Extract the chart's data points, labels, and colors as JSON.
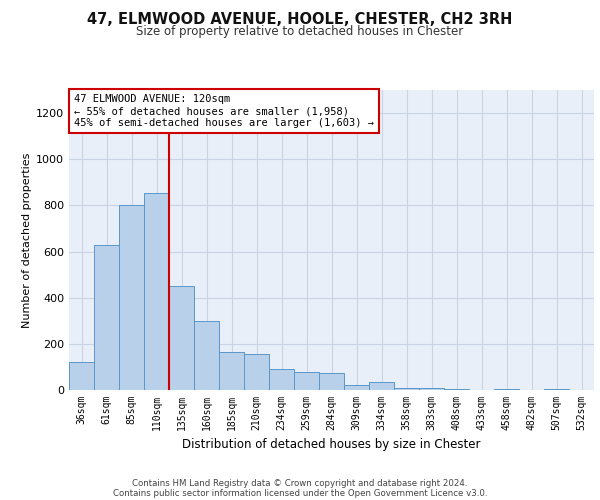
{
  "title": "47, ELMWOOD AVENUE, HOOLE, CHESTER, CH2 3RH",
  "subtitle": "Size of property relative to detached houses in Chester",
  "xlabel": "Distribution of detached houses by size in Chester",
  "ylabel": "Number of detached properties",
  "categories": [
    "36sqm",
    "61sqm",
    "85sqm",
    "110sqm",
    "135sqm",
    "160sqm",
    "185sqm",
    "210sqm",
    "234sqm",
    "259sqm",
    "284sqm",
    "309sqm",
    "334sqm",
    "358sqm",
    "383sqm",
    "408sqm",
    "433sqm",
    "458sqm",
    "482sqm",
    "507sqm",
    "532sqm"
  ],
  "values": [
    120,
    630,
    800,
    855,
    450,
    300,
    165,
    155,
    90,
    80,
    75,
    20,
    35,
    10,
    8,
    5,
    0,
    5,
    0,
    5,
    0
  ],
  "bar_color": "#b8d0ea",
  "bar_edge_color": "#5a96cc",
  "grid_color": "#c8d4e4",
  "bg_color": "#e8eff8",
  "vline_color": "#cc0000",
  "annotation_text": "47 ELMWOOD AVENUE: 120sqm\n← 55% of detached houses are smaller (1,958)\n45% of semi-detached houses are larger (1,603) →",
  "annotation_box_color": "#ffffff",
  "annotation_border_color": "#cc0000",
  "ylim": [
    0,
    1300
  ],
  "yticks": [
    0,
    200,
    400,
    600,
    800,
    1000,
    1200
  ],
  "footer_line1": "Contains HM Land Registry data © Crown copyright and database right 2024.",
  "footer_line2": "Contains public sector information licensed under the Open Government Licence v3.0."
}
